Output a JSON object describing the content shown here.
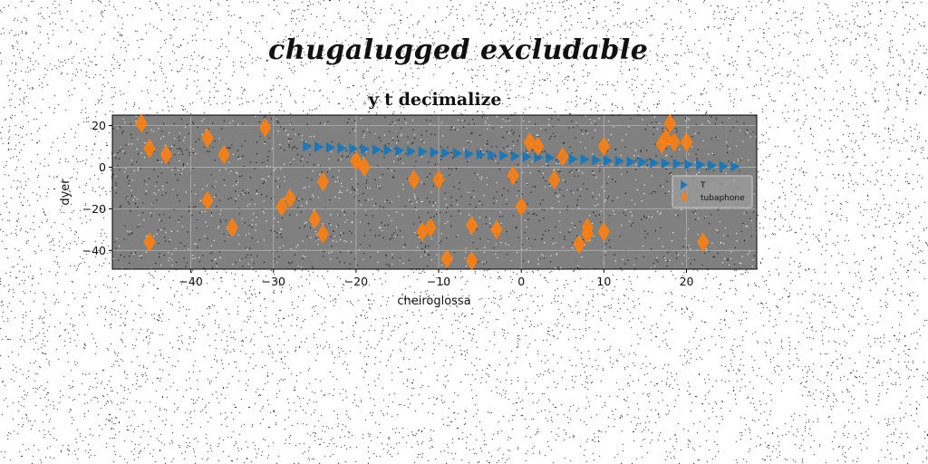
{
  "suptitle": "chugalugged excludable",
  "chart_data": {
    "type": "scatter",
    "title": "y t decimalize",
    "xlabel": "cheiroglossa",
    "ylabel": "dyer",
    "xlim": [
      -49.5,
      28.5
    ],
    "ylim": [
      -49,
      25
    ],
    "xticks": [
      -40,
      -30,
      -20,
      -10,
      0,
      10,
      20
    ],
    "yticks": [
      -40,
      -20,
      0,
      20
    ],
    "grid": true,
    "legend_position": "center-right",
    "axes_background": "#808080",
    "series": [
      {
        "name": "T",
        "marker": "triangle-right",
        "color": "#1f77b4",
        "x": [
          -26,
          -24.6,
          -23.2,
          -21.8,
          -20.4,
          -19,
          -17.6,
          -16.2,
          -14.8,
          -13.4,
          -12,
          -10.6,
          -9.2,
          -7.8,
          -6.4,
          -5,
          -3.6,
          -2.2,
          -0.8,
          0.6,
          2,
          3.4,
          4.8,
          6.2,
          7.6,
          9,
          10.4,
          11.8,
          13.2,
          14.6,
          16,
          17.4,
          18.8,
          20.2,
          21.6,
          23,
          24.4,
          25.8
        ],
        "y": [
          10,
          9.7,
          9.5,
          9.2,
          8.9,
          8.7,
          8.4,
          8.2,
          7.9,
          7.6,
          7.4,
          7.1,
          6.8,
          6.6,
          6.3,
          6.1,
          5.8,
          5.5,
          5.3,
          5,
          4.7,
          4.5,
          4.2,
          3.9,
          3.7,
          3.4,
          3.2,
          2.9,
          2.6,
          2.4,
          2.1,
          1.8,
          1.6,
          1.3,
          1.1,
          0.8,
          0.5,
          0.3
        ]
      },
      {
        "name": "tubaphone",
        "marker": "thin-diamond",
        "color": "#ff7f0e",
        "x": [
          -46,
          -45,
          -45,
          -43,
          -38,
          -38,
          -36,
          -35,
          -31,
          -29,
          -28,
          -25,
          -24,
          -24,
          -20,
          -19,
          -13,
          -12,
          -11,
          -10,
          -9,
          -6,
          -6,
          -3,
          -1,
          0,
          1,
          2,
          4,
          5,
          7,
          8,
          8,
          10,
          10,
          17,
          17.5,
          18,
          18.5,
          20,
          22
        ],
        "y": [
          21,
          9,
          -36,
          6,
          14,
          -16,
          6,
          -29,
          19,
          -19,
          -15,
          -25,
          -7,
          -32,
          3,
          0,
          -6,
          -31,
          -29,
          -6,
          -44,
          -28,
          -45,
          -30,
          -4,
          -19,
          12,
          10,
          -6,
          5,
          -37,
          -29,
          -32,
          10,
          -31,
          11,
          14,
          21,
          12,
          12,
          -36
        ]
      }
    ]
  }
}
